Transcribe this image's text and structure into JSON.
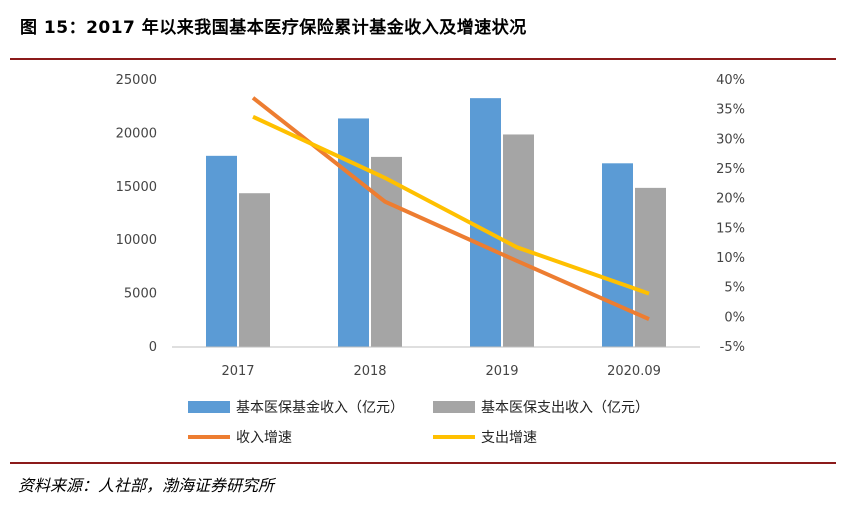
{
  "title": "图 15：2017 年以来我国基本医疗保险累计基金收入及增速状况",
  "source": "资料来源：人社部，渤海证券研究所",
  "chart_data": {
    "type": "bar",
    "categories": [
      "2017",
      "2018",
      "2019",
      "2020.09"
    ],
    "left_axis": {
      "min": 0,
      "max": 25000,
      "step": 5000,
      "ticks": [
        "0",
        "5000",
        "10000",
        "15000",
        "20000",
        "25000"
      ]
    },
    "right_axis": {
      "min": -5,
      "max": 40,
      "step": 5,
      "ticks": [
        "-5%",
        "0%",
        "5%",
        "10%",
        "15%",
        "20%",
        "25%",
        "30%",
        "35%",
        "40%"
      ]
    },
    "grid": false,
    "legend_position": "bottom",
    "series": [
      {
        "name": "基本医保基金收入（亿元）",
        "type": "bar",
        "axis": "left",
        "color": "#5b9bd5",
        "values": [
          17900,
          21400,
          23300,
          17200
        ]
      },
      {
        "name": "基本医保支出收入（亿元）",
        "type": "bar",
        "axis": "left",
        "color": "#a5a5a5",
        "values": [
          14400,
          17800,
          19900,
          14900
        ]
      },
      {
        "name": "收入增速",
        "type": "line",
        "axis": "right",
        "color": "#ed7d31",
        "values": [
          37,
          19.5,
          9.5,
          -0.3
        ]
      },
      {
        "name": "支出增速",
        "type": "line",
        "axis": "right",
        "color": "#ffc000",
        "values": [
          33.8,
          23.5,
          11.8,
          4
        ]
      }
    ]
  }
}
